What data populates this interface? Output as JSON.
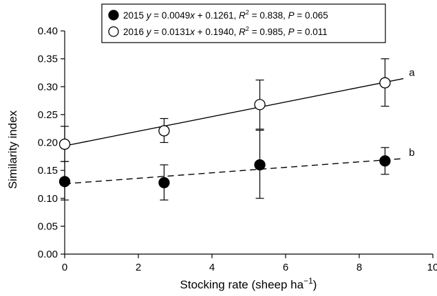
{
  "chart_data": {
    "type": "scatter",
    "xlabel": "Stocking rate (sheep ha",
    "xlabel_sup": "−1",
    "xlabel_end": ")",
    "ylabel": "Similarity index",
    "xlim": [
      0,
      10
    ],
    "ylim": [
      0,
      0.4
    ],
    "x_ticks": [
      0,
      2,
      4,
      6,
      8,
      10
    ],
    "x_tick_labels": [
      "0",
      "2",
      "4",
      "6",
      "8",
      "10"
    ],
    "y_ticks": [
      0,
      0.05,
      0.1,
      0.15,
      0.2,
      0.25,
      0.3,
      0.35,
      0.4
    ],
    "y_tick_labels": [
      "0.00",
      "0.05",
      "0.10",
      "0.15",
      "0.20",
      "0.25",
      "0.30",
      "0.35",
      "0.40"
    ],
    "grid": false,
    "legend_position": "top-center",
    "series": [
      {
        "name": "2015",
        "marker": "filled-circle",
        "color": "#000000",
        "x": [
          0,
          2.7,
          5.3,
          8.7
        ],
        "y": [
          0.13,
          0.128,
          0.16,
          0.167
        ],
        "err_low": [
          0.097,
          0.097,
          0.1,
          0.143
        ],
        "err_high": [
          0.166,
          0.16,
          0.222,
          0.191
        ],
        "fit": {
          "slope": 0.0049,
          "intercept": 0.1261,
          "x_range": [
            0,
            9.2
          ],
          "style": "dashed",
          "label": "b"
        },
        "legend_parts": [
          {
            "t": "2015 ",
            "i": false,
            "sup": false
          },
          {
            "t": "y",
            "i": true,
            "sup": false
          },
          {
            "t": " = 0.0049",
            "i": false,
            "sup": false
          },
          {
            "t": "x",
            "i": true,
            "sup": false
          },
          {
            "t": " + 0.1261, ",
            "i": false,
            "sup": false
          },
          {
            "t": "R",
            "i": true,
            "sup": false
          },
          {
            "t": "2",
            "i": false,
            "sup": true
          },
          {
            "t": " = 0.838, ",
            "i": false,
            "sup": false
          },
          {
            "t": "P",
            "i": true,
            "sup": false
          },
          {
            "t": " = 0.065",
            "i": false,
            "sup": false
          }
        ]
      },
      {
        "name": "2016",
        "marker": "open-circle",
        "color": "#000000",
        "x": [
          0,
          2.7,
          5.3,
          8.7
        ],
        "y": [
          0.197,
          0.221,
          0.268,
          0.307
        ],
        "err_low": [
          0.166,
          0.2,
          0.224,
          0.265
        ],
        "err_high": [
          0.229,
          0.243,
          0.312,
          0.35
        ],
        "fit": {
          "slope": 0.0131,
          "intercept": 0.194,
          "x_range": [
            0,
            9.2
          ],
          "style": "solid",
          "label": "a"
        },
        "legend_parts": [
          {
            "t": "2016 ",
            "i": false,
            "sup": false
          },
          {
            "t": "y",
            "i": true,
            "sup": false
          },
          {
            "t": " = 0.0131",
            "i": false,
            "sup": false
          },
          {
            "t": "x",
            "i": true,
            "sup": false
          },
          {
            "t": " + 0.1940, ",
            "i": false,
            "sup": false
          },
          {
            "t": "R",
            "i": true,
            "sup": false
          },
          {
            "t": "2",
            "i": false,
            "sup": true
          },
          {
            "t": " = 0.985, ",
            "i": false,
            "sup": false
          },
          {
            "t": "P",
            "i": true,
            "sup": false
          },
          {
            "t": " = 0.011",
            "i": false,
            "sup": false
          }
        ]
      }
    ]
  }
}
